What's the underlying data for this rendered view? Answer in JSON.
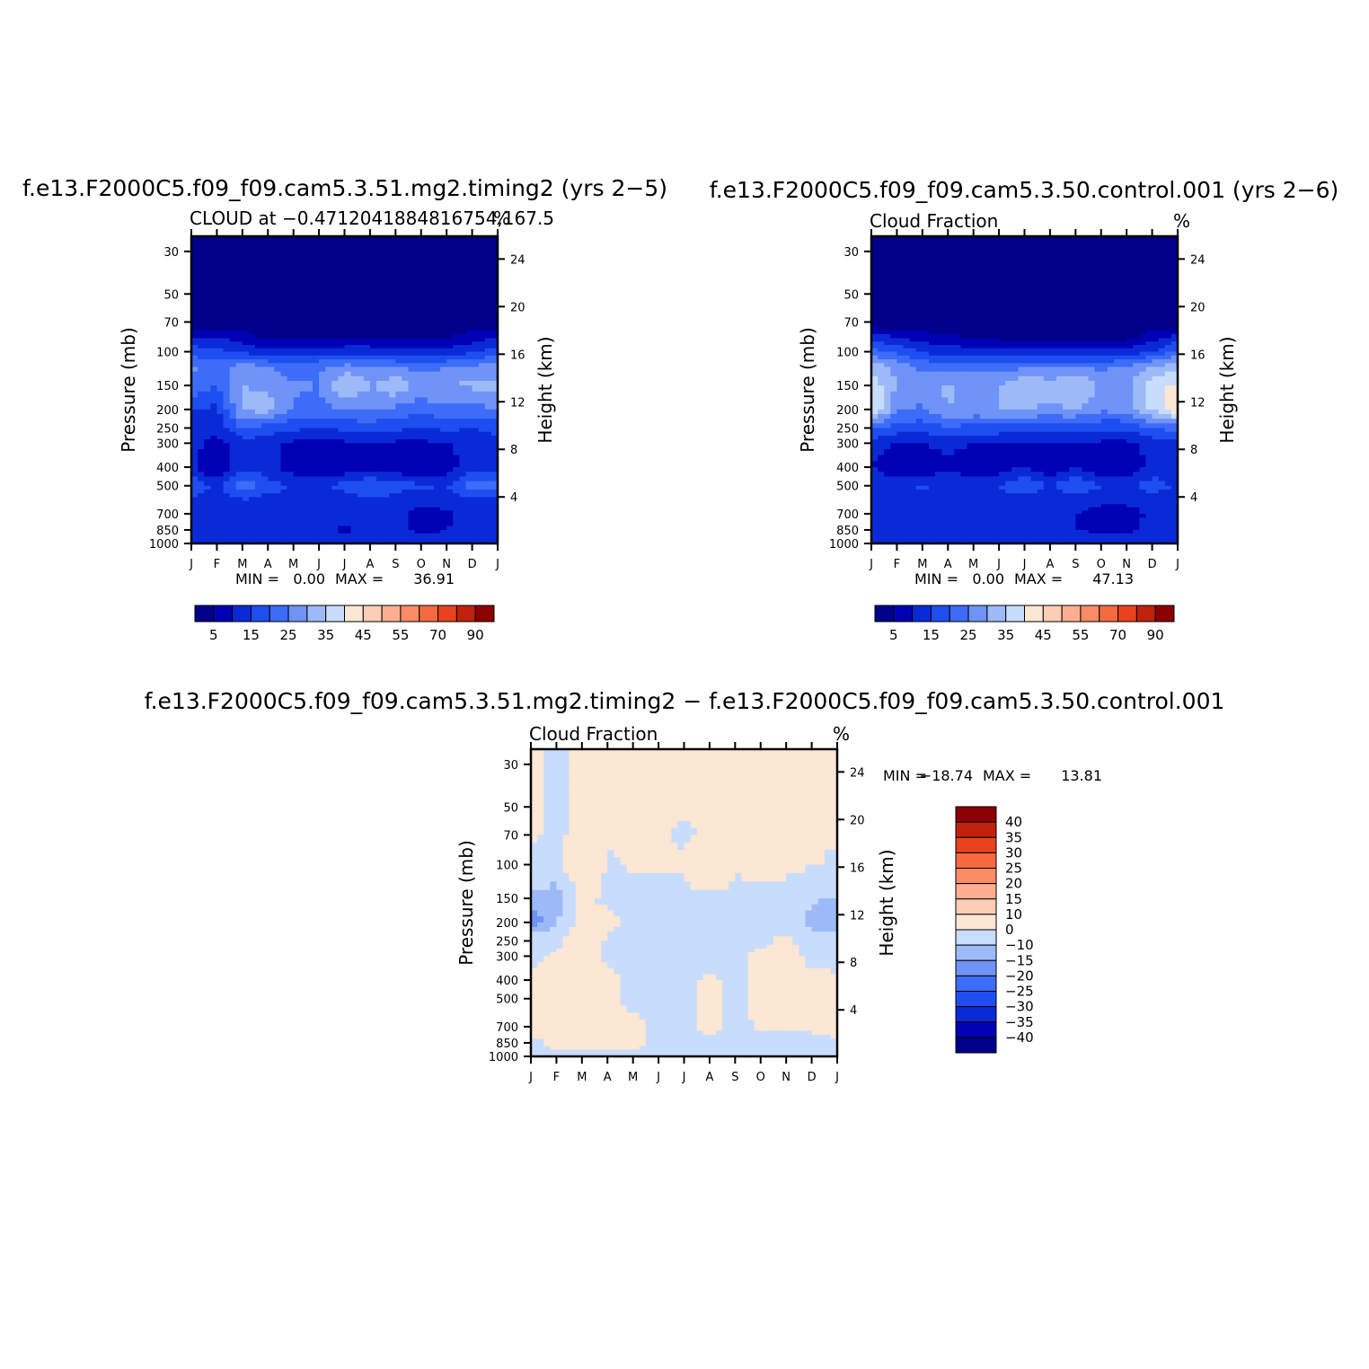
{
  "page": {
    "top_left_title": "f.e13.F2000C5.f09_f09.cam5.3.51.mg2.timing2 (yrs 2−5)",
    "top_right_title": "f.e13.F2000C5.f09_f09.cam5.3.50.control.001 (yrs 2−6)",
    "bottom_title": "f.e13.F2000C5.f09_f09.cam5.3.51.mg2.timing2 − f.e13.F2000C5.f09_f09.cam5.3.50.control.001"
  },
  "chart_data": [
    {
      "type": "heatmap",
      "title": "f.e13.F2000C5.f09_f09.cam5.3.51.mg2.timing2 (yrs 2−5)",
      "subtitle": "CLOUD at −0.4712041884816754,167.5",
      "units": "%",
      "xlabel": "",
      "ylabel": "Pressure (mb)",
      "ylabel_right": "Height (km)",
      "x": [
        "J",
        "F",
        "M",
        "A",
        "M",
        "J",
        "J",
        "A",
        "S",
        "O",
        "N",
        "D",
        "J"
      ],
      "y_ticks": [
        30,
        50,
        70,
        100,
        150,
        200,
        250,
        300,
        400,
        500,
        700,
        850,
        1000
      ],
      "y_ticks_right": [
        24,
        20,
        16,
        12,
        8,
        4
      ],
      "ylim": [
        1000,
        25
      ],
      "log_y": true,
      "min_label": "MIN =",
      "min_value": "0.00",
      "max_label": "MAX =",
      "max_value": "36.91",
      "levels": [
        0,
        5,
        10,
        15,
        20,
        25,
        30,
        35,
        40,
        45,
        50,
        55,
        60,
        70,
        80,
        90
      ],
      "colorbar_labels": [
        "5",
        "15",
        "25",
        "35",
        "45",
        "55",
        "70",
        "90"
      ],
      "colorbar_colors": [
        "#00008b",
        "#0000b4",
        "#0a2ad8",
        "#1e4ef0",
        "#3c6cf8",
        "#6f93f7",
        "#9dbaf8",
        "#c8ddfc",
        "#fce6d4",
        "#fdcdb5",
        "#fcae8f",
        "#fb8c66",
        "#f76a3f",
        "#e8431e",
        "#c0220c",
        "#8b0000"
      ],
      "z_profiles": [
        {
          "p": 30,
          "v": [
            0,
            0,
            0,
            0,
            0,
            0,
            0,
            0,
            0,
            0,
            0,
            0,
            0
          ]
        },
        {
          "p": 50,
          "v": [
            0,
            0,
            0,
            0,
            0,
            0,
            0,
            0,
            0,
            0,
            0,
            0,
            0
          ]
        },
        {
          "p": 70,
          "v": [
            1,
            1,
            1,
            1,
            1,
            1,
            1,
            1,
            1,
            1,
            1,
            1,
            1
          ]
        },
        {
          "p": 85,
          "v": [
            11,
            10,
            8,
            4,
            5,
            4,
            5,
            5,
            4,
            4,
            5,
            8,
            11
          ]
        },
        {
          "p": 100,
          "v": [
            18,
            16,
            14,
            11,
            12,
            13,
            13,
            13,
            12,
            12,
            12,
            14,
            18
          ]
        },
        {
          "p": 120,
          "v": [
            26,
            22,
            28,
            25,
            22,
            24,
            27,
            26,
            25,
            23,
            25,
            26,
            28
          ]
        },
        {
          "p": 150,
          "v": [
            24,
            20,
            30,
            29,
            26,
            25,
            36,
            30,
            34,
            28,
            30,
            31,
            31
          ]
        },
        {
          "p": 200,
          "v": [
            15,
            14,
            31,
            32,
            24,
            23,
            25,
            26,
            24,
            22,
            24,
            23,
            25
          ]
        },
        {
          "p": 250,
          "v": [
            14,
            12,
            20,
            18,
            16,
            15,
            16,
            17,
            16,
            15,
            16,
            15,
            17
          ]
        },
        {
          "p": 300,
          "v": [
            12,
            8,
            13,
            12,
            9,
            9,
            9,
            10,
            9,
            9,
            10,
            12,
            13
          ]
        },
        {
          "p": 400,
          "v": [
            11,
            4,
            14,
            12,
            7,
            6,
            6,
            6,
            6,
            6,
            7,
            13,
            11
          ]
        },
        {
          "p": 500,
          "v": [
            21,
            12,
            24,
            17,
            15,
            13,
            17,
            21,
            17,
            16,
            15,
            23,
            21
          ]
        },
        {
          "p": 600,
          "v": [
            14,
            12,
            14,
            13,
            13,
            12,
            12,
            13,
            13,
            11,
            12,
            13,
            14
          ]
        },
        {
          "p": 700,
          "v": [
            13,
            12,
            13,
            12,
            12,
            12,
            12,
            12,
            12,
            8,
            9,
            12,
            13
          ]
        },
        {
          "p": 850,
          "v": [
            12,
            12,
            12,
            12,
            11,
            11,
            9,
            11,
            11,
            9,
            10,
            11,
            12
          ]
        },
        {
          "p": 1000,
          "v": [
            12,
            12,
            12,
            12,
            12,
            12,
            12,
            12,
            12,
            12,
            12,
            12,
            12
          ]
        }
      ]
    },
    {
      "type": "heatmap",
      "title": "f.e13.F2000C5.f09_f09.cam5.3.50.control.001 (yrs 2−6)",
      "subtitle": "Cloud Fraction",
      "units": "%",
      "xlabel": "",
      "ylabel": "Pressure (mb)",
      "ylabel_right": "Height (km)",
      "x": [
        "J",
        "F",
        "M",
        "A",
        "M",
        "J",
        "J",
        "A",
        "S",
        "O",
        "N",
        "D",
        "J"
      ],
      "y_ticks": [
        30,
        50,
        70,
        100,
        150,
        200,
        250,
        300,
        400,
        500,
        700,
        850,
        1000
      ],
      "y_ticks_right": [
        24,
        20,
        16,
        12,
        8,
        4
      ],
      "ylim": [
        1000,
        25
      ],
      "log_y": true,
      "min_label": "MIN =",
      "min_value": "0.00",
      "max_label": "MAX =",
      "max_value": "47.13",
      "levels": [
        0,
        5,
        10,
        15,
        20,
        25,
        30,
        35,
        40,
        45,
        50,
        55,
        60,
        70,
        80,
        90
      ],
      "colorbar_labels": [
        "5",
        "15",
        "25",
        "35",
        "45",
        "55",
        "70",
        "90"
      ],
      "colorbar_colors": [
        "#00008b",
        "#0000b4",
        "#0a2ad8",
        "#1e4ef0",
        "#3c6cf8",
        "#6f93f7",
        "#9dbaf8",
        "#c8ddfc",
        "#fce6d4",
        "#fdcdb5",
        "#fcae8f",
        "#fb8c66",
        "#f76a3f",
        "#e8431e",
        "#c0220c",
        "#8b0000"
      ],
      "z_profiles": [
        {
          "p": 30,
          "v": [
            0,
            0,
            0,
            0,
            0,
            0,
            0,
            0,
            0,
            0,
            0,
            0,
            0
          ]
        },
        {
          "p": 50,
          "v": [
            0,
            0,
            0,
            0,
            0,
            0,
            0,
            0,
            0,
            0,
            0,
            0,
            0
          ]
        },
        {
          "p": 70,
          "v": [
            1,
            1,
            1,
            1,
            1,
            1,
            1,
            1,
            1,
            1,
            1,
            1,
            1
          ]
        },
        {
          "p": 85,
          "v": [
            12,
            11,
            8,
            6,
            5,
            4,
            4,
            4,
            3,
            3,
            4,
            8,
            12
          ]
        },
        {
          "p": 100,
          "v": [
            22,
            19,
            14,
            13,
            12,
            12,
            11,
            12,
            11,
            11,
            12,
            15,
            22
          ]
        },
        {
          "p": 120,
          "v": [
            34,
            28,
            24,
            22,
            24,
            23,
            24,
            24,
            25,
            24,
            26,
            30,
            34
          ]
        },
        {
          "p": 150,
          "v": [
            38,
            30,
            27,
            31,
            28,
            30,
            36,
            33,
            36,
            29,
            29,
            38,
            41
          ]
        },
        {
          "p": 200,
          "v": [
            41,
            26,
            24,
            30,
            29,
            30,
            30,
            29,
            30,
            26,
            27,
            36,
            44
          ]
        },
        {
          "p": 250,
          "v": [
            20,
            18,
            17,
            19,
            18,
            18,
            17,
            18,
            17,
            16,
            16,
            20,
            22
          ]
        },
        {
          "p": 300,
          "v": [
            13,
            10,
            10,
            12,
            10,
            10,
            10,
            10,
            10,
            9,
            9,
            12,
            14
          ]
        },
        {
          "p": 400,
          "v": [
            10,
            6,
            6,
            8,
            7,
            7,
            10,
            5,
            10,
            6,
            6,
            11,
            10
          ]
        },
        {
          "p": 500,
          "v": [
            14,
            13,
            16,
            14,
            14,
            15,
            20,
            14,
            20,
            15,
            14,
            18,
            14
          ]
        },
        {
          "p": 600,
          "v": [
            13,
            12,
            12,
            13,
            12,
            12,
            12,
            12,
            12,
            11,
            11,
            12,
            13
          ]
        },
        {
          "p": 700,
          "v": [
            12,
            11,
            11,
            12,
            11,
            11,
            11,
            11,
            10,
            8,
            8,
            11,
            12
          ]
        },
        {
          "p": 850,
          "v": [
            12,
            11,
            12,
            12,
            11,
            11,
            11,
            11,
            10,
            9,
            9,
            11,
            12
          ]
        },
        {
          "p": 1000,
          "v": [
            13,
            13,
            13,
            13,
            13,
            13,
            13,
            13,
            13,
            13,
            13,
            13,
            13
          ]
        }
      ]
    },
    {
      "type": "heatmap",
      "title": "f.e13.F2000C5.f09_f09.cam5.3.51.mg2.timing2 − f.e13.F2000C5.f09_f09.cam5.3.50.control.001",
      "subtitle": "Cloud Fraction",
      "units": "%",
      "xlabel": "",
      "ylabel": "Pressure (mb)",
      "ylabel_right": "Height (km)",
      "x": [
        "J",
        "F",
        "M",
        "A",
        "M",
        "J",
        "J",
        "A",
        "S",
        "O",
        "N",
        "D",
        "J"
      ],
      "y_ticks": [
        30,
        50,
        70,
        100,
        150,
        200,
        250,
        300,
        400,
        500,
        700,
        850,
        1000
      ],
      "y_ticks_right": [
        24,
        20,
        16,
        12,
        8,
        4
      ],
      "ylim": [
        1000,
        25
      ],
      "log_y": true,
      "min_label": "MIN =",
      "min_value": "−18.74",
      "max_label": "MAX =",
      "max_value": "13.81",
      "levels": [
        -45,
        -40,
        -35,
        -30,
        -25,
        -20,
        -15,
        -10,
        0,
        10,
        15,
        20,
        25,
        30,
        35,
        40,
        45
      ],
      "colorbar_labels": [
        "40",
        "35",
        "30",
        "25",
        "20",
        "15",
        "10",
        "0",
        "−10",
        "−15",
        "−20",
        "−25",
        "−30",
        "−35",
        "−40"
      ],
      "colorbar_colors": [
        "#00008b",
        "#0000b4",
        "#0a2ad8",
        "#1e4ef0",
        "#3c6cf8",
        "#6f93f7",
        "#9dbaf8",
        "#c8ddfc",
        "#fce6d4",
        "#fdcdb5",
        "#fcae8f",
        "#fb8c66",
        "#f76a3f",
        "#e8431e",
        "#c0220c",
        "#8b0000"
      ],
      "z_profiles": [
        {
          "p": 30,
          "v": [
            1,
            -1,
            1,
            1,
            1,
            1,
            1,
            1,
            1,
            1,
            1,
            1,
            1
          ]
        },
        {
          "p": 50,
          "v": [
            1,
            -1,
            1,
            1,
            1,
            1,
            1,
            1,
            1,
            1,
            1,
            1,
            1
          ]
        },
        {
          "p": 70,
          "v": [
            1,
            -1,
            1,
            1,
            1,
            1,
            -1,
            1,
            1,
            1,
            1,
            1,
            1
          ]
        },
        {
          "p": 100,
          "v": [
            -2,
            -3,
            12,
            -1,
            1,
            1,
            1,
            12,
            1,
            1,
            1,
            1,
            -2
          ]
        },
        {
          "p": 150,
          "v": [
            -11,
            -16,
            2,
            -2,
            -2,
            -2,
            -2,
            -2,
            -2,
            -1,
            -1,
            -9,
            -11
          ]
        },
        {
          "p": 200,
          "v": [
            -18,
            -11,
            4,
            3,
            -3,
            -3,
            -3,
            -3,
            -3,
            -3,
            -3,
            -13,
            -15
          ]
        },
        {
          "p": 250,
          "v": [
            -5,
            -4,
            11,
            -2,
            -2,
            -2,
            -2,
            -2,
            -2,
            -2,
            2,
            -5,
            -5
          ]
        },
        {
          "p": 300,
          "v": [
            -2,
            2,
            5,
            -2,
            -2,
            -2,
            -2,
            -2,
            -2,
            2,
            3,
            -2,
            -2
          ]
        },
        {
          "p": 400,
          "v": [
            1,
            2,
            3,
            2,
            -2,
            -2,
            -2,
            1,
            -2,
            2,
            2,
            2,
            1
          ]
        },
        {
          "p": 500,
          "v": [
            3,
            1,
            12,
            2,
            -2,
            -2,
            -2,
            3,
            -2,
            2,
            2,
            2,
            3
          ]
        },
        {
          "p": 700,
          "v": [
            4,
            1,
            2,
            2,
            2,
            -2,
            -2,
            2,
            -2,
            1,
            1,
            1,
            4
          ]
        },
        {
          "p": 850,
          "v": [
            -2,
            2,
            2,
            2,
            2,
            -2,
            -2,
            -2,
            -2,
            -2,
            -2,
            -2,
            -2
          ]
        },
        {
          "p": 1000,
          "v": [
            -2,
            -2,
            -2,
            -2,
            -2,
            -2,
            -2,
            -2,
            -2,
            -2,
            -2,
            -2,
            -2
          ]
        }
      ]
    }
  ]
}
